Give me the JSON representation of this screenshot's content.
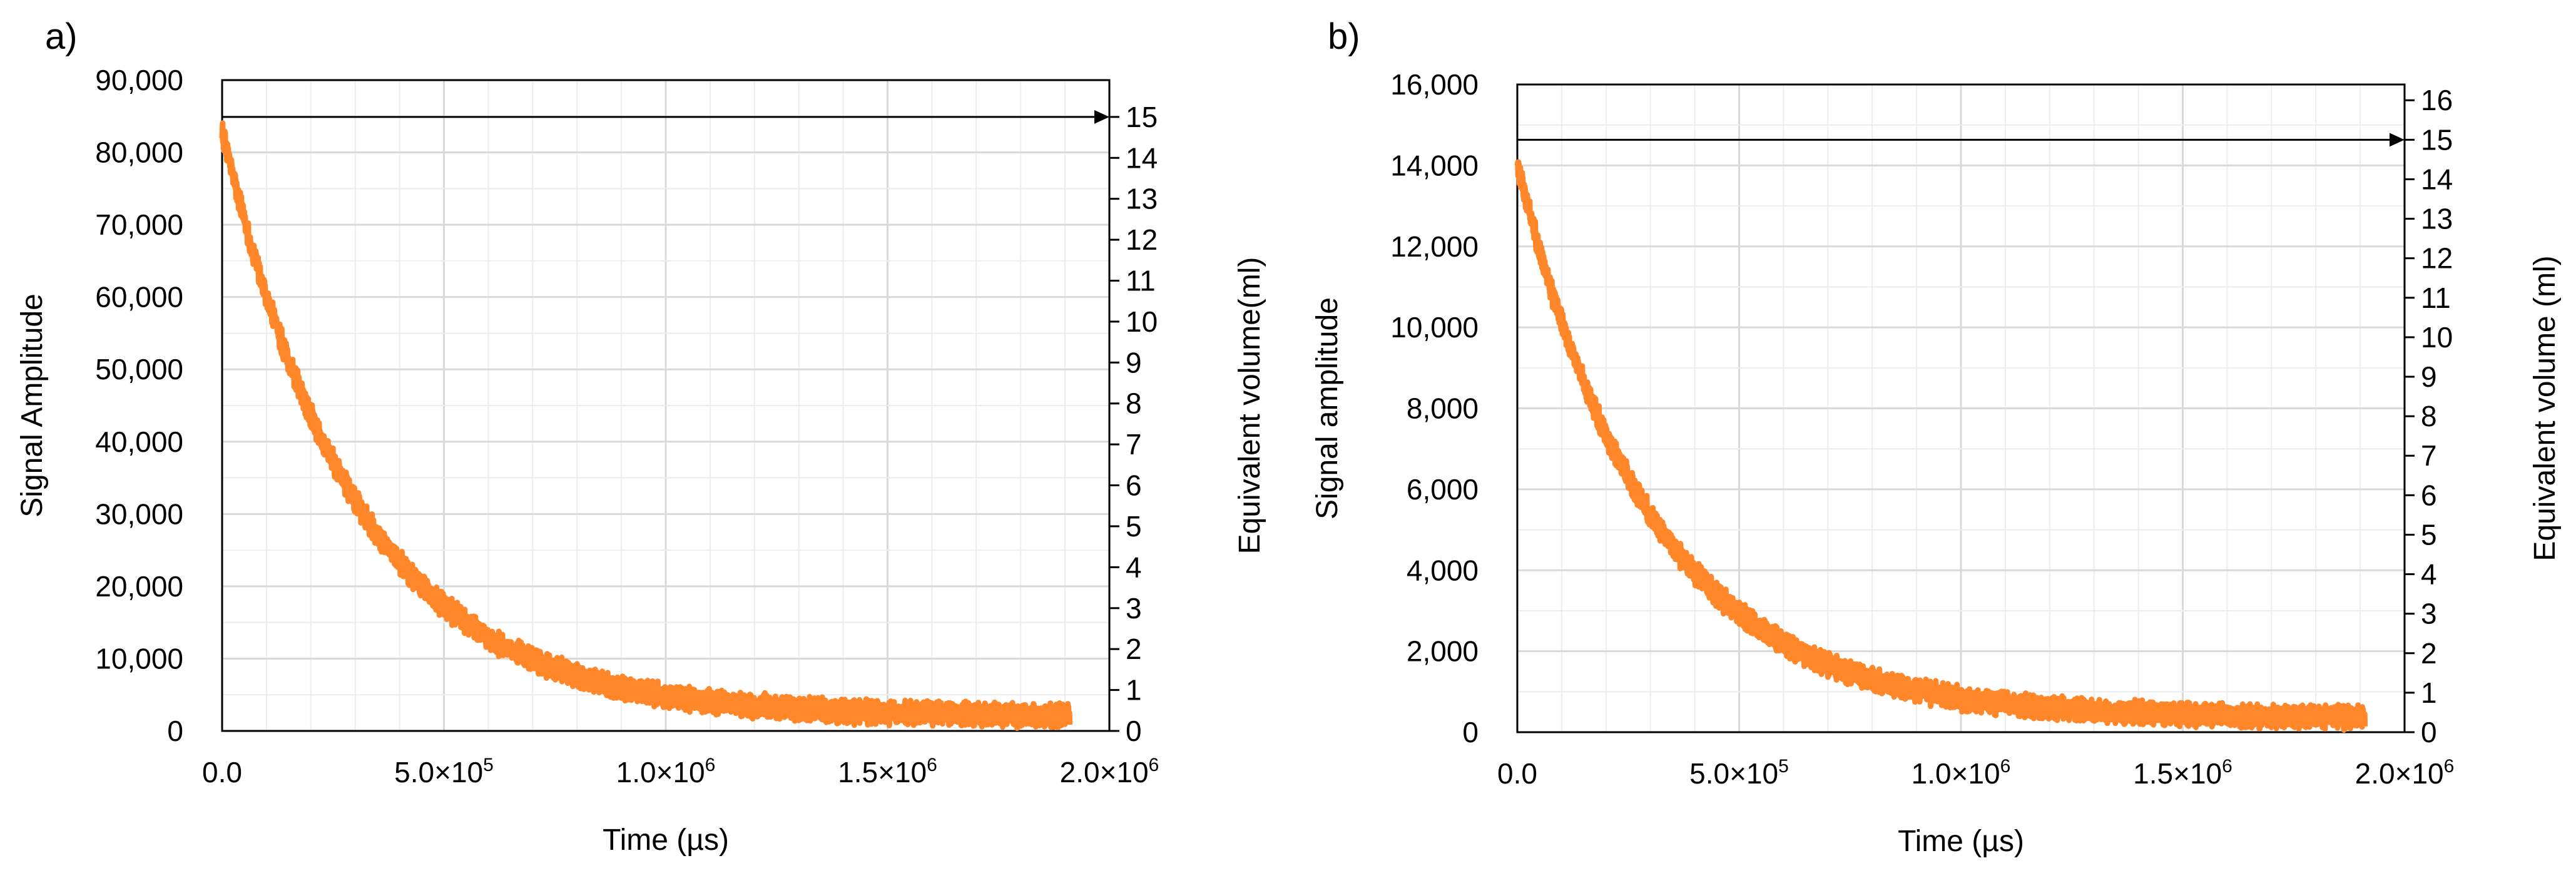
{
  "chart_data": [
    {
      "panel": "a)",
      "type": "line",
      "series": [
        {
          "name": "Signal",
          "color": "#FF8629",
          "decay": {
            "start": 83000,
            "tau": 300000,
            "baseline": 2000,
            "noise": 1500,
            "x_end": 1910000
          }
        }
      ],
      "xlabel": "Time (µs)",
      "ylabel": "Signal Amplitude",
      "y2label": "Equivalent volume(ml)",
      "xlim": [
        0,
        2000000
      ],
      "ylim": [
        0,
        90000
      ],
      "y2lim": [
        0,
        15.9
      ],
      "x_ticks": [
        {
          "v": 0,
          "mant": "0.0",
          "exp": ""
        },
        {
          "v": 500000,
          "mant": "5.0×10",
          "exp": "5"
        },
        {
          "v": 1000000,
          "mant": "1.0×10",
          "exp": "6"
        },
        {
          "v": 1500000,
          "mant": "1.5×10",
          "exp": "6"
        },
        {
          "v": 2000000,
          "mant": "2.0×10",
          "exp": "6"
        }
      ],
      "y_ticks": [
        {
          "v": 0,
          "label": "0"
        },
        {
          "v": 10000,
          "label": "10,000"
        },
        {
          "v": 20000,
          "label": "20,000"
        },
        {
          "v": 30000,
          "label": "30,000"
        },
        {
          "v": 40000,
          "label": "40,000"
        },
        {
          "v": 50000,
          "label": "50,000"
        },
        {
          "v": 60000,
          "label": "60,000"
        },
        {
          "v": 70000,
          "label": "70,000"
        },
        {
          "v": 80000,
          "label": "80,000"
        },
        {
          "v": 90000,
          "label": "90,000"
        }
      ],
      "y2_ticks": [
        0,
        1,
        2,
        3,
        4,
        5,
        6,
        7,
        8,
        9,
        10,
        11,
        12,
        13,
        14,
        15
      ],
      "reference_line_y2": 15,
      "grid": true
    },
    {
      "panel": "b)",
      "type": "line",
      "series": [
        {
          "name": "Signal",
          "color": "#FF8629",
          "decay": {
            "start": 14000,
            "tau": 300000,
            "baseline": 350,
            "noise": 260,
            "x_end": 1910000
          }
        }
      ],
      "xlabel": "Time (µs)",
      "ylabel": "Signal amplitude",
      "y2label": "Equivalent volume (ml)",
      "xlim": [
        0,
        2000000
      ],
      "ylim": [
        0,
        16000
      ],
      "y2lim": [
        0,
        16.4
      ],
      "x_ticks": [
        {
          "v": 0,
          "mant": "0.0",
          "exp": ""
        },
        {
          "v": 500000,
          "mant": "5.0×10",
          "exp": "5"
        },
        {
          "v": 1000000,
          "mant": "1.0×10",
          "exp": "6"
        },
        {
          "v": 1500000,
          "mant": "1.5×10",
          "exp": "6"
        },
        {
          "v": 2000000,
          "mant": "2.0×10",
          "exp": "6"
        }
      ],
      "y_ticks": [
        {
          "v": 0,
          "label": "0"
        },
        {
          "v": 2000,
          "label": "2,000"
        },
        {
          "v": 4000,
          "label": "4,000"
        },
        {
          "v": 6000,
          "label": "6,000"
        },
        {
          "v": 8000,
          "label": "8,000"
        },
        {
          "v": 10000,
          "label": "10,000"
        },
        {
          "v": 12000,
          "label": "12,000"
        },
        {
          "v": 14000,
          "label": "14,000"
        },
        {
          "v": 16000,
          "label": "16,000"
        }
      ],
      "y2_ticks": [
        0,
        1,
        2,
        3,
        4,
        5,
        6,
        7,
        8,
        9,
        10,
        11,
        12,
        13,
        14,
        15,
        16
      ],
      "reference_line_y2": 15,
      "grid": true
    }
  ]
}
